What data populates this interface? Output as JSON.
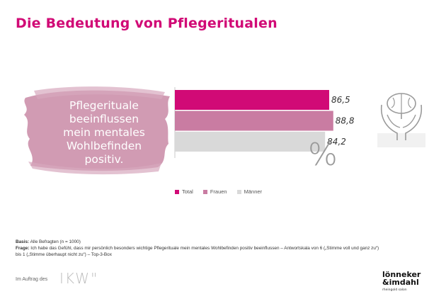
{
  "title": "Die Bedeutung von Pflegeritualen",
  "lead_lines": [
    "Pflegerituale",
    "beeinflussen",
    "mein mentales",
    "Wohlbefinden",
    "positiv."
  ],
  "percent_symbol": "%",
  "colors": {
    "title": "#d10a76",
    "total": "#d10a76",
    "frauen": "#c97ca2",
    "maenner": "#d9d9d9",
    "brush": "#c98aa6"
  },
  "icon": "brain-in-hands-icon",
  "chart_data": {
    "type": "bar",
    "orientation": "horizontal",
    "series": [
      {
        "name": "Total",
        "value": 86.5,
        "label": "86,5"
      },
      {
        "name": "Frauen",
        "value": 88.8,
        "label": "88,8"
      },
      {
        "name": "Männer",
        "value": 84.2,
        "label": "84,2"
      }
    ],
    "xlim": [
      0,
      100
    ],
    "legend_position": "bottom",
    "grid": false
  },
  "legend": [
    "Total",
    "Frauen",
    "Männer"
  ],
  "notes": {
    "basis_label": "Basis:",
    "basis_text": " Alle Befragten (n = 1000)",
    "frage_label": "Frage:",
    "frage_text": " Ich habe das Gefühl, dass mir persönlich besonders wichtige Pflegerituale mein mentales Wohlbefinden positiv beeinflussen – Antwortskala von 6 („Stimme voll und ganz zu“)",
    "frage_text2": "bis  1 („Stimme überhaupt nicht zu“) – Top-3-Box"
  },
  "footer": {
    "im_auftrag": "Im Auftrag des",
    "ikw_logo": "IKW",
    "brand_line1": "lönneker",
    "brand_line2": "&imdahl",
    "brand_sub": "rheingold salon"
  }
}
